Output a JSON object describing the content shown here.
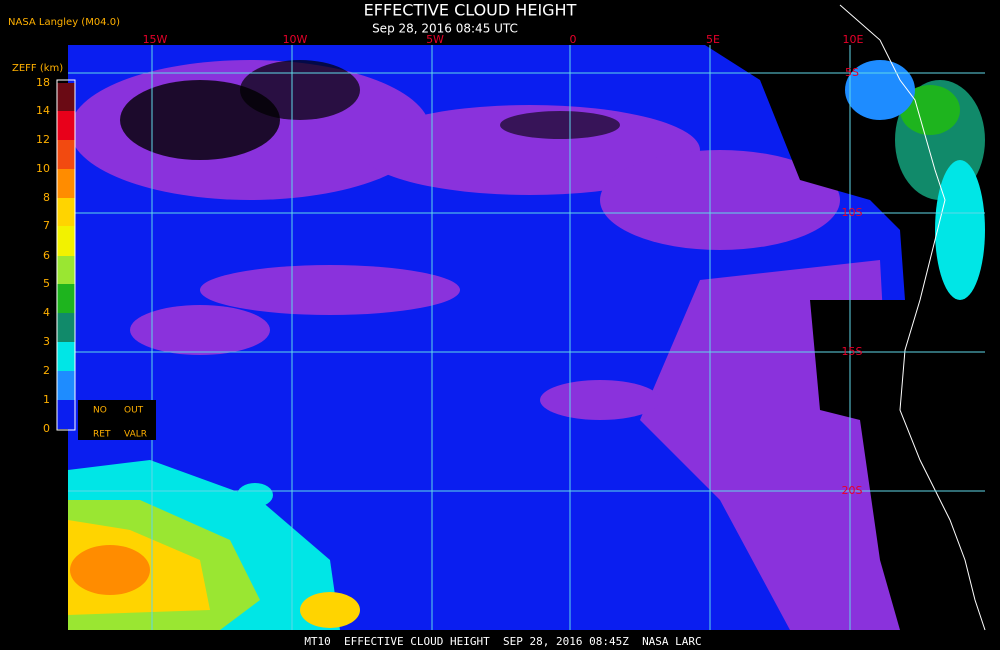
{
  "header": {
    "credit": "NASA Langley (M04.0)",
    "title": "EFFECTIVE CLOUD HEIGHT",
    "subtitle": "Sep 28, 2016 08:45 UTC"
  },
  "legend": {
    "title": "ZEFF (km)",
    "ticks": [
      "18",
      "14",
      "12",
      "10",
      "8",
      "7",
      "6",
      "5",
      "4",
      "3",
      "2",
      "1",
      "0"
    ],
    "colors": [
      "#6a0a14",
      "#e8001a",
      "#f24a10",
      "#ff8c00",
      "#ffd400",
      "#f2f200",
      "#9ae632",
      "#1eb41e",
      "#118a6a",
      "#00e6e6",
      "#1e8cff",
      "#0a1ef0",
      "#8a32dc"
    ],
    "no_retrieval": [
      "NO",
      "RET"
    ],
    "out_of_range": [
      "OUT",
      "VALR"
    ]
  },
  "map": {
    "lon_labels": [
      "15W",
      "10W",
      "5W",
      "0",
      "5E",
      "10E"
    ],
    "lat_labels": [
      "5S",
      "10S",
      "15S",
      "20S"
    ]
  },
  "footer": {
    "caption": "MT10  EFFECTIVE CLOUD HEIGHT  SEP 28, 2016 08:45Z  NASA LARC"
  }
}
